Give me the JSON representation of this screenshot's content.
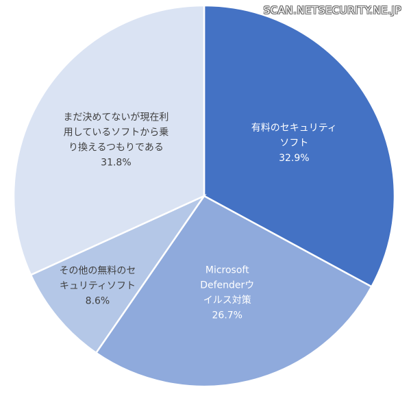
{
  "watermark": "SCAN.NETSECURITY.NE.JP",
  "chart_data": {
    "type": "pie",
    "title": "",
    "start_angle_deg": 0,
    "direction": "clockwise",
    "slices": [
      {
        "label_lines": [
          "有料のセキュリティ",
          "ソフト"
        ],
        "value": 32.9,
        "value_label": "32.9%",
        "color": "#4472c4",
        "text_color": "#ffffff"
      },
      {
        "label_lines": [
          "Microsoft",
          "Defenderウ",
          "イルス対策"
        ],
        "value": 26.7,
        "value_label": "26.7%",
        "color": "#8faadc",
        "text_color": "#ffffff"
      },
      {
        "label_lines": [
          "その他の無料のセ",
          "キュリティソフト"
        ],
        "value": 8.6,
        "value_label": "8.6%",
        "color": "#b4c7e7",
        "text_color": "#404040"
      },
      {
        "label_lines": [
          "まだ決めてないが現在利",
          "用しているソフトから乗",
          "り換えるつもりである"
        ],
        "value": 31.8,
        "value_label": "31.8%",
        "color": "#dae3f3",
        "text_color": "#404040"
      }
    ]
  }
}
